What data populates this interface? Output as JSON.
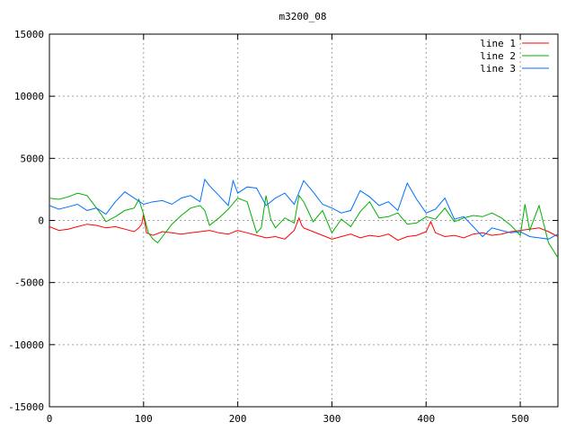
{
  "chart_data": {
    "type": "line",
    "title": "m3200_08",
    "xlabel": "",
    "ylabel": "",
    "xlim": [
      0,
      540
    ],
    "ylim": [
      -15000,
      15000
    ],
    "x_ticks": [
      0,
      100,
      200,
      300,
      400,
      500
    ],
    "y_ticks": [
      -15000,
      -10000,
      -5000,
      0,
      5000,
      10000,
      15000
    ],
    "x_tick_labels": [
      "0",
      "100",
      "200",
      "300",
      "400",
      "500"
    ],
    "y_tick_labels": [
      "-15000",
      "-10000",
      "-5000",
      "0",
      "5000",
      "10000",
      "15000"
    ],
    "grid": true,
    "legend_position": "top-right",
    "series": [
      {
        "name": "line 1",
        "color": "#ff0000",
        "x": [
          0,
          10,
          20,
          30,
          40,
          50,
          60,
          70,
          80,
          90,
          95,
          98,
          100,
          103,
          110,
          120,
          130,
          140,
          150,
          160,
          170,
          180,
          190,
          200,
          210,
          220,
          230,
          240,
          250,
          260,
          265,
          268,
          270,
          280,
          290,
          300,
          310,
          320,
          330,
          340,
          350,
          360,
          370,
          380,
          390,
          400,
          405,
          410,
          420,
          430,
          440,
          450,
          460,
          470,
          480,
          490,
          500,
          510,
          520,
          530,
          540
        ],
        "y": [
          -500,
          -800,
          -700,
          -500,
          -300,
          -400,
          -600,
          -500,
          -700,
          -900,
          -600,
          -300,
          500,
          -1000,
          -1200,
          -900,
          -1000,
          -1100,
          -1000,
          -900,
          -800,
          -1000,
          -1100,
          -800,
          -1000,
          -1200,
          -1400,
          -1300,
          -1500,
          -800,
          200,
          -400,
          -600,
          -900,
          -1200,
          -1500,
          -1300,
          -1100,
          -1400,
          -1200,
          -1300,
          -1100,
          -1600,
          -1300,
          -1200,
          -900,
          -100,
          -1000,
          -1300,
          -1200,
          -1400,
          -1100,
          -1000,
          -1200,
          -1100,
          -900,
          -800,
          -700,
          -600,
          -900,
          -1300
        ]
      },
      {
        "name": "line 2",
        "color": "#00b000",
        "x": [
          0,
          10,
          20,
          30,
          40,
          50,
          55,
          60,
          70,
          80,
          90,
          95,
          100,
          105,
          110,
          115,
          120,
          130,
          140,
          150,
          160,
          165,
          170,
          180,
          190,
          200,
          210,
          220,
          225,
          230,
          235,
          240,
          250,
          260,
          265,
          270,
          280,
          290,
          300,
          310,
          320,
          330,
          340,
          350,
          360,
          370,
          380,
          390,
          400,
          410,
          420,
          430,
          440,
          450,
          460,
          470,
          480,
          490,
          500,
          505,
          510,
          520,
          530,
          540
        ],
        "y": [
          1800,
          1700,
          1900,
          2200,
          2000,
          1000,
          500,
          -100,
          300,
          800,
          1000,
          1700,
          500,
          -1000,
          -1500,
          -1800,
          -1300,
          -300,
          400,
          1000,
          1200,
          800,
          -400,
          200,
          900,
          1800,
          1500,
          -1000,
          -600,
          2000,
          100,
          -600,
          200,
          -200,
          2000,
          1500,
          -100,
          800,
          -1000,
          100,
          -500,
          700,
          1500,
          200,
          300,
          600,
          -300,
          -200,
          300,
          100,
          1000,
          -100,
          200,
          400,
          300,
          600,
          200,
          -400,
          -1200,
          1300,
          -800,
          1200,
          -1800,
          -3000
        ]
      },
      {
        "name": "line 3",
        "color": "#0070ff",
        "x": [
          0,
          10,
          20,
          30,
          40,
          50,
          60,
          70,
          80,
          90,
          100,
          110,
          120,
          130,
          140,
          150,
          160,
          165,
          170,
          180,
          190,
          195,
          200,
          210,
          220,
          230,
          240,
          250,
          260,
          270,
          280,
          290,
          300,
          310,
          320,
          330,
          340,
          350,
          360,
          370,
          380,
          390,
          400,
          410,
          420,
          430,
          440,
          450,
          460,
          470,
          480,
          490,
          500,
          510,
          520,
          530,
          540
        ],
        "y": [
          1200,
          900,
          1100,
          1300,
          800,
          1000,
          500,
          1500,
          2300,
          1800,
          1300,
          1500,
          1600,
          1300,
          1800,
          2000,
          1500,
          3300,
          2800,
          2000,
          1200,
          3200,
          2200,
          2700,
          2600,
          1200,
          1800,
          2200,
          1300,
          3200,
          2300,
          1300,
          1000,
          600,
          800,
          2400,
          1900,
          1200,
          1500,
          800,
          3000,
          1700,
          600,
          900,
          1800,
          100,
          300,
          -500,
          -1300,
          -600,
          -800,
          -1000,
          -900,
          -1300,
          -1400,
          -1500,
          -1100
        ]
      }
    ]
  }
}
